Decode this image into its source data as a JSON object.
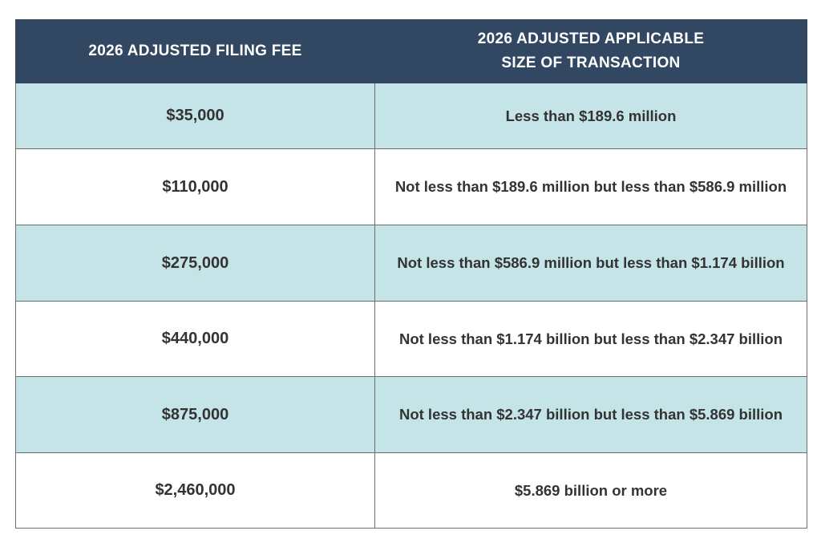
{
  "table": {
    "headers": {
      "fee": "2026 ADJUSTED FILING FEE",
      "size_line1": "2026 ADJUSTED APPLICABLE",
      "size_line2": "SIZE OF TRANSACTION"
    },
    "rows": [
      {
        "fee": "$35,000",
        "size": "Less than $189.6 million"
      },
      {
        "fee": "$110,000",
        "size": "Not less than $189.6 million but less than $586.9 million"
      },
      {
        "fee": "$275,000",
        "size": "Not less than $586.9 million but less than $1.174 billion"
      },
      {
        "fee": "$440,000",
        "size": "Not less than $1.174 billion but less than $2.347 billion"
      },
      {
        "fee": "$875,000",
        "size": "Not less than $2.347 billion but less than $5.869 billion"
      },
      {
        "fee": "$2,460,000",
        "size": "$5.869 billion or more"
      }
    ]
  },
  "colors": {
    "header_bg": "#324761",
    "header_text": "#ffffff",
    "row_tinted_bg": "#c4e4e8",
    "row_plain_bg": "#ffffff",
    "body_text": "#333333",
    "border": "#6e6e6e"
  }
}
